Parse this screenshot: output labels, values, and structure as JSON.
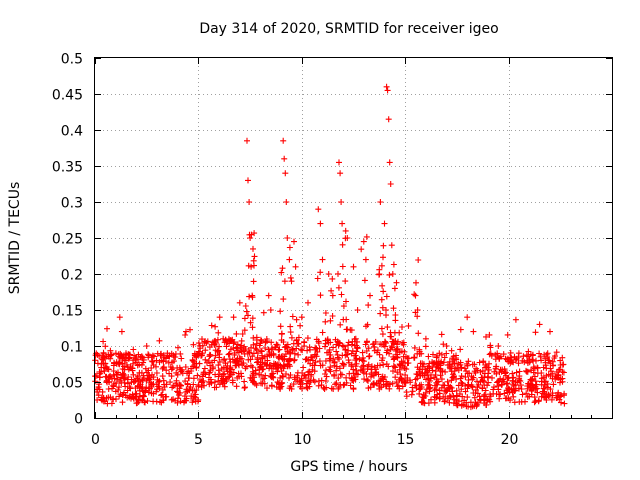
{
  "chart_data": {
    "type": "scatter",
    "title": "Day 314 of 2020, SRMTID for receiver igeo",
    "xlabel": "GPS time / hours",
    "ylabel": "SRMTID / TECUs",
    "xlim": [
      0,
      25
    ],
    "ylim": [
      0,
      0.5
    ],
    "x_ticks": [
      0,
      5,
      10,
      15,
      20
    ],
    "x_tick_labels": [
      "0",
      "5",
      "10",
      "15",
      "20"
    ],
    "y_ticks": [
      0,
      0.05,
      0.1,
      0.15,
      0.2,
      0.25,
      0.3,
      0.35,
      0.4,
      0.45,
      0.5
    ],
    "y_tick_labels": [
      "0",
      "0.05",
      "0.1",
      "0.15",
      "0.2",
      "0.25",
      "0.3",
      "0.35",
      "0.4",
      "0.45",
      "0.5"
    ],
    "grid": true,
    "marker": "+",
    "color": "#ff0000",
    "data_x_range": [
      0,
      22.7
    ],
    "series": [
      {
        "name": "SRMTID",
        "note": "dense scatter ~0.02-0.10 TECU baseline; representative outliers listed",
        "points": [
          [
            0.1,
            0.04
          ],
          [
            0.3,
            0.07
          ],
          [
            0.6,
            0.02
          ],
          [
            0.9,
            0.06
          ],
          [
            1.2,
            0.14
          ],
          [
            1.3,
            0.12
          ],
          [
            1.5,
            0.09
          ],
          [
            2.0,
            0.03
          ],
          [
            2.5,
            0.1
          ],
          [
            3.0,
            0.04
          ],
          [
            3.5,
            0.09
          ],
          [
            4.0,
            0.06
          ],
          [
            4.4,
            0.12
          ],
          [
            4.8,
            0.03
          ],
          [
            5.2,
            0.09
          ],
          [
            5.8,
            0.05
          ],
          [
            6.2,
            0.11
          ],
          [
            6.7,
            0.14
          ],
          [
            7.0,
            0.16
          ],
          [
            7.35,
            0.385
          ],
          [
            7.4,
            0.33
          ],
          [
            7.45,
            0.3
          ],
          [
            7.5,
            0.25
          ],
          [
            7.55,
            0.21
          ],
          [
            7.6,
            0.17
          ],
          [
            8.4,
            0.17
          ],
          [
            8.5,
            0.15
          ],
          [
            9.1,
            0.385
          ],
          [
            9.15,
            0.36
          ],
          [
            9.2,
            0.34
          ],
          [
            9.25,
            0.3
          ],
          [
            9.3,
            0.25
          ],
          [
            9.4,
            0.22
          ],
          [
            9.5,
            0.19
          ],
          [
            9.7,
            0.21
          ],
          [
            10.0,
            0.14
          ],
          [
            10.3,
            0.16
          ],
          [
            10.8,
            0.29
          ],
          [
            10.9,
            0.27
          ],
          [
            11.0,
            0.22
          ],
          [
            11.3,
            0.2
          ],
          [
            11.5,
            0.17
          ],
          [
            11.8,
            0.355
          ],
          [
            11.85,
            0.34
          ],
          [
            11.9,
            0.3
          ],
          [
            11.95,
            0.27
          ],
          [
            12.2,
            0.25
          ],
          [
            12.5,
            0.21
          ],
          [
            12.7,
            0.15
          ],
          [
            13.0,
            0.245
          ],
          [
            13.1,
            0.22
          ],
          [
            13.3,
            0.17
          ],
          [
            13.8,
            0.3
          ],
          [
            14.0,
            0.27
          ],
          [
            14.1,
            0.46
          ],
          [
            14.15,
            0.455
          ],
          [
            14.2,
            0.415
          ],
          [
            14.25,
            0.355
          ],
          [
            14.3,
            0.325
          ],
          [
            14.35,
            0.24
          ],
          [
            14.4,
            0.2
          ],
          [
            14.5,
            0.18
          ],
          [
            15.5,
            0.17
          ],
          [
            15.6,
            0.15
          ],
          [
            16.0,
            0.11
          ],
          [
            16.5,
            0.04
          ],
          [
            17.0,
            0.1
          ],
          [
            17.5,
            0.03
          ],
          [
            18.0,
            0.14
          ],
          [
            18.3,
            0.12
          ],
          [
            18.6,
            0.03
          ],
          [
            19.0,
            0.07
          ],
          [
            19.5,
            0.1
          ],
          [
            20.0,
            0.04
          ],
          [
            20.5,
            0.09
          ],
          [
            21.0,
            0.03
          ],
          [
            21.5,
            0.13
          ],
          [
            22.0,
            0.12
          ],
          [
            22.5,
            0.03
          ],
          [
            22.7,
            0.02
          ]
        ]
      }
    ]
  }
}
